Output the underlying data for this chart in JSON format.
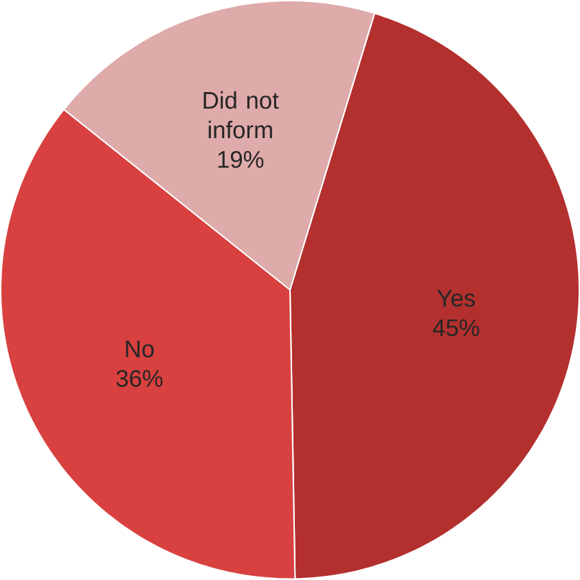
{
  "chart_data": {
    "type": "pie",
    "categories": [
      "Yes",
      "No",
      "Did not inform"
    ],
    "values": [
      45,
      36,
      19
    ],
    "value_labels": [
      "45%",
      "36%",
      "19%"
    ],
    "colors": [
      "#b3302e",
      "#d8413f",
      "#dfaaaa"
    ]
  }
}
